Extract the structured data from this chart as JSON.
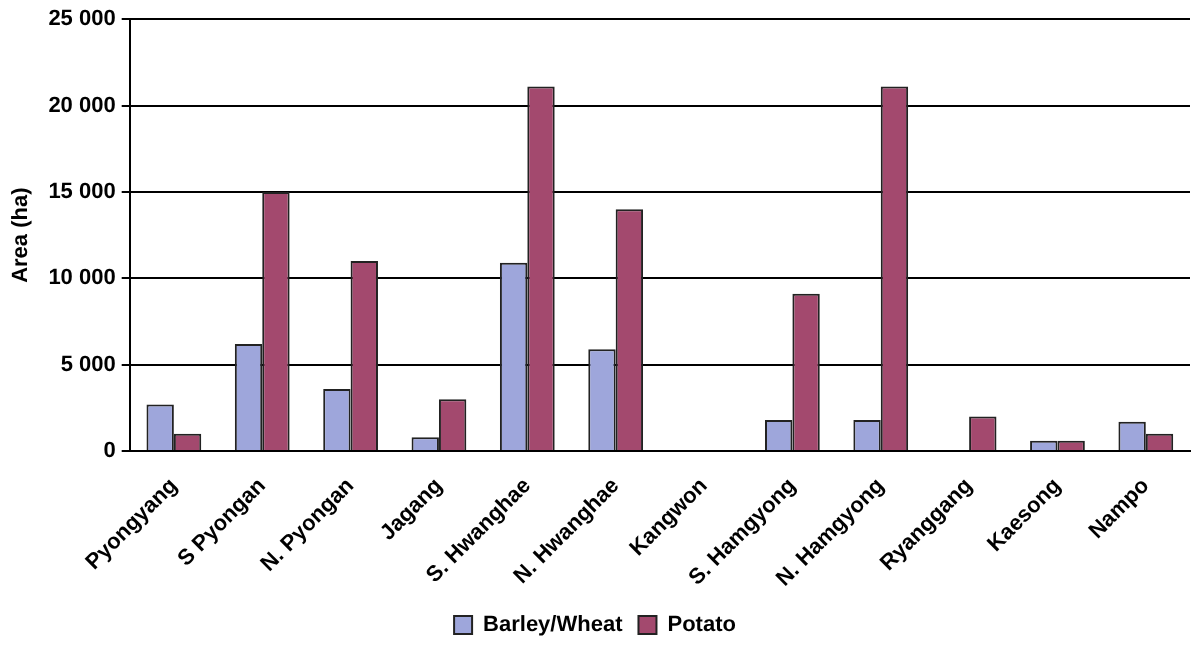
{
  "chart_data": {
    "type": "bar",
    "ylabel": "Area (ha)",
    "categories": [
      "Pyongyang",
      "S Pyongan",
      "N. Pyongan",
      "Jagang",
      "S. Hwanghae",
      "N. Hwanghae",
      "Kangwon",
      "S. Hamgyong",
      "N. Hamgyong",
      "Ryanggang",
      "Kaesong",
      "Nampo"
    ],
    "series": [
      {
        "name": "Barley/Wheat",
        "color": "#9ea6db",
        "values": [
          2700,
          6200,
          3600,
          800,
          10900,
          5900,
          null,
          1800,
          1800,
          0,
          600,
          1700
        ]
      },
      {
        "name": "Potato",
        "color": "#a3496e",
        "values": [
          1000,
          15000,
          11000,
          3000,
          21100,
          14000,
          null,
          9100,
          21100,
          2000,
          600,
          1000
        ]
      }
    ],
    "ylim": [
      0,
      25000
    ],
    "yticks": [
      {
        "value": 0,
        "label": "0"
      },
      {
        "value": 5000,
        "label": "5 000"
      },
      {
        "value": 10000,
        "label": "10 000"
      },
      {
        "value": 15000,
        "label": "15 000"
      },
      {
        "value": 20000,
        "label": "20 000"
      },
      {
        "value": 25000,
        "label": "25 000"
      }
    ],
    "grid": "y",
    "legend": "bottom"
  }
}
